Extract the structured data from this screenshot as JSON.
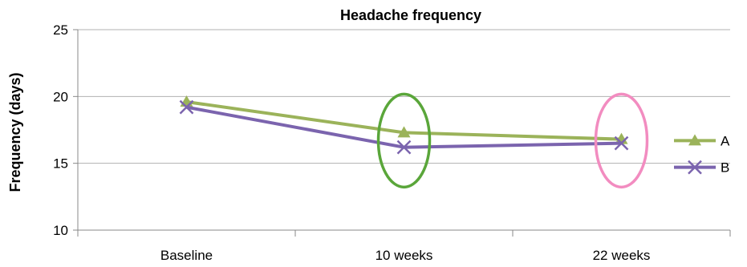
{
  "chart_data": {
    "type": "line",
    "title": "Headache frequency",
    "xlabel": "",
    "ylabel": "Frequency (days)",
    "categories": [
      "Baseline",
      "10 weeks",
      "22 weeks"
    ],
    "ylim": [
      10,
      25
    ],
    "yticks": [
      10,
      15,
      20,
      25
    ],
    "grid": true,
    "legend": "right",
    "series": [
      {
        "name": "A",
        "values": [
          19.6,
          17.3,
          16.8
        ],
        "color": "#9bb35a",
        "marker": "triangle"
      },
      {
        "name": "B",
        "values": [
          19.2,
          16.2,
          16.5
        ],
        "color": "#7b64ae",
        "marker": "x"
      }
    ],
    "annotations": [
      {
        "shape": "ellipse",
        "category": "10 weeks",
        "color": "#5aa63a"
      },
      {
        "shape": "ellipse",
        "category": "22 weeks",
        "color": "#f28cc0"
      }
    ]
  }
}
